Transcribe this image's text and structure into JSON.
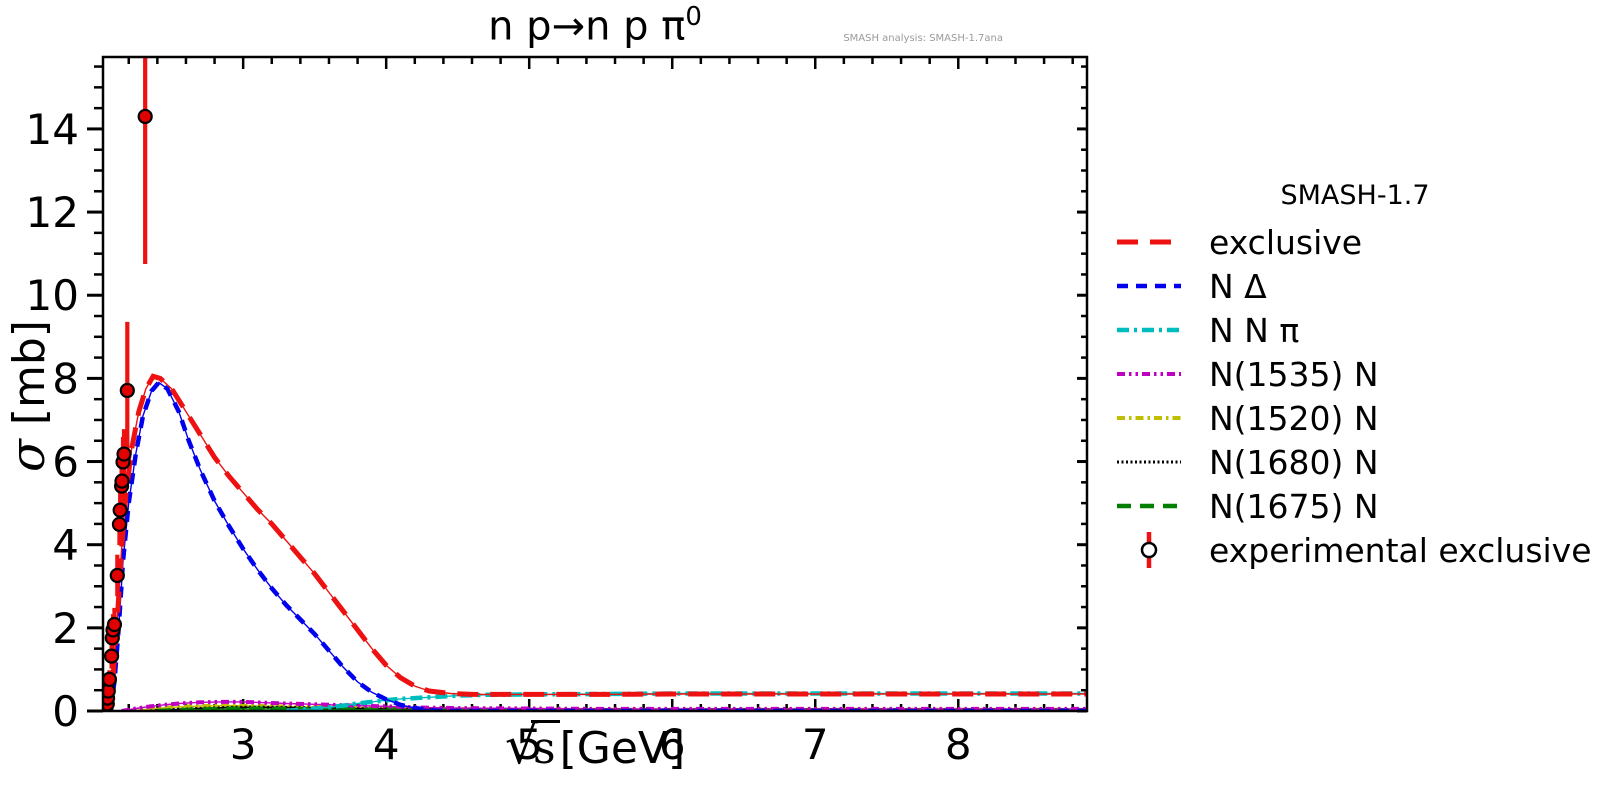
{
  "header": {
    "title_main": "n p→n p π",
    "title_sup": "0",
    "watermark": "SMASH analysis: SMASH-1.7ana"
  },
  "axes": {
    "x_sqrt": "√",
    "x_s": "s",
    "x_unit": "[GeV]",
    "y_sigma": "σ",
    "y_unit": " [mb]"
  },
  "legend": {
    "title": "SMASH-1.7",
    "entries": [
      {
        "label": "exclusive",
        "type": "line",
        "color": "#ee1111",
        "dash": "21 12",
        "width": 5
      },
      {
        "label": "N Δ",
        "type": "line",
        "color": "#0000ee",
        "dash": "11 8",
        "width": 4.5
      },
      {
        "label": "N N π",
        "type": "line",
        "color": "#00bdbd",
        "dash": "12 5 3 5",
        "width": 4.5
      },
      {
        "label": "N(1535) N",
        "type": "line",
        "color": "#bf00bf",
        "dash": "8 4 2.5 4 2.5 4",
        "width": 4
      },
      {
        "label": "N(1520) N",
        "type": "line",
        "color": "#bfbf00",
        "dash": "8 4 2.5 4",
        "width": 4
      },
      {
        "label": "N(1680) N",
        "type": "line",
        "color": "#000000",
        "dash": "2 2.5",
        "width": 3
      },
      {
        "label": "N(1675) N",
        "type": "line",
        "color": "#007f00",
        "dash": "14 9",
        "width": 4.5
      },
      {
        "label": "experimental exclusive",
        "type": "marker",
        "marker_edge": "#000000",
        "marker_face": "#ffffff",
        "errorbar_color": "#ee1111"
      }
    ]
  },
  "chart_data": {
    "type": "line",
    "title": "n p → n p π⁰",
    "xlabel": "√s [GeV]",
    "ylabel": "σ [mb]",
    "xlim": [
      2.02,
      8.9
    ],
    "ylim": [
      0,
      15.73
    ],
    "xticks": [
      3,
      4,
      5,
      6,
      7,
      8
    ],
    "yticks": [
      0,
      2,
      4,
      6,
      8,
      10,
      12,
      14
    ],
    "x_minor_step": 0.2,
    "y_minor_step": 0.5,
    "grid": false,
    "legend_position": "right-outside",
    "series": [
      {
        "name": "N(1520) N",
        "color": "#bfbf00",
        "dash": "8 4 2.5 4",
        "width": 4,
        "points": [
          [
            2.2,
            0.0
          ],
          [
            2.35,
            0.05
          ],
          [
            2.5,
            0.09
          ],
          [
            2.7,
            0.12
          ],
          [
            2.9,
            0.13
          ],
          [
            3.1,
            0.12
          ],
          [
            3.3,
            0.11
          ],
          [
            3.6,
            0.09
          ],
          [
            3.9,
            0.07
          ],
          [
            4.2,
            0.05
          ],
          [
            4.5,
            0.04
          ],
          [
            5.0,
            0.03
          ],
          [
            6.0,
            0.03
          ],
          [
            7.0,
            0.03
          ],
          [
            8.0,
            0.03
          ],
          [
            8.9,
            0.03
          ]
        ]
      },
      {
        "name": "N(1680) N",
        "color": "#000000",
        "dash": "2 2.5",
        "width": 3,
        "points": [
          [
            2.35,
            0.0
          ],
          [
            2.55,
            0.04
          ],
          [
            2.75,
            0.07
          ],
          [
            2.95,
            0.09
          ],
          [
            3.15,
            0.09
          ],
          [
            3.4,
            0.08
          ],
          [
            3.7,
            0.06
          ],
          [
            4.0,
            0.05
          ],
          [
            4.5,
            0.03
          ],
          [
            5.0,
            0.02
          ],
          [
            6.0,
            0.02
          ],
          [
            7.0,
            0.02
          ],
          [
            8.0,
            0.02
          ],
          [
            8.9,
            0.02
          ]
        ]
      },
      {
        "name": "N(1675) N",
        "color": "#007f00",
        "dash": "14 9",
        "width": 4.5,
        "points": [
          [
            2.4,
            0.0
          ],
          [
            2.65,
            0.03
          ],
          [
            2.9,
            0.05
          ],
          [
            3.2,
            0.05
          ],
          [
            3.5,
            0.04
          ],
          [
            4.0,
            0.03
          ],
          [
            4.5,
            0.02
          ],
          [
            5.0,
            0.02
          ],
          [
            6.0,
            0.02
          ],
          [
            7.0,
            0.02
          ],
          [
            8.0,
            0.02
          ],
          [
            8.9,
            0.02
          ]
        ]
      },
      {
        "name": "N(1535) N",
        "color": "#bf00bf",
        "dash": "8 4 2.5 4 2.5 4",
        "width": 4,
        "points": [
          [
            2.15,
            0.0
          ],
          [
            2.25,
            0.06
          ],
          [
            2.35,
            0.11
          ],
          [
            2.45,
            0.15
          ],
          [
            2.55,
            0.18
          ],
          [
            2.7,
            0.21
          ],
          [
            2.85,
            0.22
          ],
          [
            3.0,
            0.22
          ],
          [
            3.15,
            0.2
          ],
          [
            3.3,
            0.18
          ],
          [
            3.5,
            0.16
          ],
          [
            3.7,
            0.14
          ],
          [
            3.9,
            0.12
          ],
          [
            4.1,
            0.1
          ],
          [
            4.3,
            0.08
          ],
          [
            4.5,
            0.07
          ],
          [
            5.0,
            0.06
          ],
          [
            5.5,
            0.05
          ],
          [
            6.0,
            0.05
          ],
          [
            7.0,
            0.05
          ],
          [
            8.0,
            0.05
          ],
          [
            8.9,
            0.05
          ]
        ]
      },
      {
        "name": "N N π",
        "color": "#00bdbd",
        "dash": "12 5 3 5",
        "width": 4.5,
        "points": [
          [
            3.3,
            0.0
          ],
          [
            3.45,
            0.04
          ],
          [
            3.6,
            0.09
          ],
          [
            3.7,
            0.13
          ],
          [
            3.8,
            0.18
          ],
          [
            3.9,
            0.22
          ],
          [
            4.0,
            0.26
          ],
          [
            4.1,
            0.29
          ],
          [
            4.2,
            0.31
          ],
          [
            4.35,
            0.34
          ],
          [
            4.5,
            0.37
          ],
          [
            4.7,
            0.39
          ],
          [
            5.0,
            0.4
          ],
          [
            5.5,
            0.41
          ],
          [
            6.0,
            0.42
          ],
          [
            6.5,
            0.42
          ],
          [
            7.0,
            0.42
          ],
          [
            7.5,
            0.42
          ],
          [
            8.0,
            0.42
          ],
          [
            8.5,
            0.42
          ],
          [
            8.9,
            0.42
          ]
        ]
      },
      {
        "name": "N Δ",
        "color": "#0000ee",
        "dash": "11 8",
        "width": 4.5,
        "points": [
          [
            2.07,
            0.0
          ],
          [
            2.1,
            0.7
          ],
          [
            2.13,
            2.0
          ],
          [
            2.16,
            3.6
          ],
          [
            2.2,
            5.0
          ],
          [
            2.25,
            6.2
          ],
          [
            2.3,
            7.1
          ],
          [
            2.36,
            7.7
          ],
          [
            2.41,
            7.9
          ],
          [
            2.47,
            7.75
          ],
          [
            2.55,
            7.2
          ],
          [
            2.62,
            6.5
          ],
          [
            2.7,
            5.8
          ],
          [
            2.8,
            5.05
          ],
          [
            2.9,
            4.45
          ],
          [
            3.0,
            3.9
          ],
          [
            3.1,
            3.4
          ],
          [
            3.2,
            2.95
          ],
          [
            3.3,
            2.55
          ],
          [
            3.4,
            2.2
          ],
          [
            3.5,
            1.85
          ],
          [
            3.6,
            1.45
          ],
          [
            3.7,
            1.05
          ],
          [
            3.8,
            0.7
          ],
          [
            3.9,
            0.45
          ],
          [
            4.0,
            0.28
          ],
          [
            4.1,
            0.15
          ],
          [
            4.2,
            0.07
          ],
          [
            4.35,
            0.01
          ],
          [
            4.5,
            0.0
          ],
          [
            8.9,
            0.0
          ]
        ]
      },
      {
        "name": "exclusive",
        "color": "#ee1111",
        "dash": "21 12",
        "width": 5,
        "points": [
          [
            2.06,
            0.0
          ],
          [
            2.09,
            0.8
          ],
          [
            2.12,
            2.2
          ],
          [
            2.15,
            3.9
          ],
          [
            2.18,
            5.2
          ],
          [
            2.22,
            6.3
          ],
          [
            2.27,
            7.2
          ],
          [
            2.32,
            7.75
          ],
          [
            2.37,
            8.05
          ],
          [
            2.42,
            8.0
          ],
          [
            2.5,
            7.75
          ],
          [
            2.6,
            7.2
          ],
          [
            2.7,
            6.65
          ],
          [
            2.8,
            6.1
          ],
          [
            2.9,
            5.65
          ],
          [
            3.0,
            5.25
          ],
          [
            3.1,
            4.85
          ],
          [
            3.2,
            4.5
          ],
          [
            3.3,
            4.1
          ],
          [
            3.4,
            3.7
          ],
          [
            3.5,
            3.3
          ],
          [
            3.6,
            2.85
          ],
          [
            3.7,
            2.4
          ],
          [
            3.8,
            1.95
          ],
          [
            3.9,
            1.5
          ],
          [
            4.0,
            1.1
          ],
          [
            4.1,
            0.8
          ],
          [
            4.2,
            0.6
          ],
          [
            4.3,
            0.48
          ],
          [
            4.45,
            0.42
          ],
          [
            4.6,
            0.4
          ],
          [
            4.8,
            0.4
          ],
          [
            5.0,
            0.4
          ],
          [
            5.5,
            0.4
          ],
          [
            6.0,
            0.41
          ],
          [
            6.5,
            0.41
          ],
          [
            7.0,
            0.41
          ],
          [
            7.5,
            0.41
          ],
          [
            8.0,
            0.41
          ],
          [
            8.5,
            0.41
          ],
          [
            8.9,
            0.41
          ]
        ]
      }
    ],
    "experimental": {
      "name": "experimental exclusive",
      "marker": "circle",
      "marker_face": "#e00000",
      "marker_edge": "#000000",
      "errorbar_color": "#ee1111",
      "points": [
        {
          "x": 2.04,
          "y": 0.05,
          "err_lo": 0.05,
          "err_hi": 0.05
        },
        {
          "x": 2.05,
          "y": 0.17,
          "err_lo": 0.08,
          "err_hi": 0.08
        },
        {
          "x": 2.052,
          "y": 0.31,
          "err_lo": 0.12,
          "err_hi": 0.12
        },
        {
          "x": 2.057,
          "y": 0.48,
          "err_lo": 0.15,
          "err_hi": 0.15
        },
        {
          "x": 2.065,
          "y": 0.76,
          "err_lo": 0.22,
          "err_hi": 0.22
        },
        {
          "x": 2.08,
          "y": 1.32,
          "err_lo": 0.3,
          "err_hi": 0.3
        },
        {
          "x": 2.085,
          "y": 1.76,
          "err_lo": 0.35,
          "err_hi": 0.35
        },
        {
          "x": 2.09,
          "y": 1.95,
          "err_lo": 0.38,
          "err_hi": 0.38
        },
        {
          "x": 2.1,
          "y": 2.08,
          "err_lo": 0.4,
          "err_hi": 0.4
        },
        {
          "x": 2.12,
          "y": 3.26,
          "err_lo": 0.5,
          "err_hi": 0.5
        },
        {
          "x": 2.135,
          "y": 4.49,
          "err_lo": 0.5,
          "err_hi": 0.5
        },
        {
          "x": 2.14,
          "y": 4.83,
          "err_lo": 0.55,
          "err_hi": 0.55
        },
        {
          "x": 2.15,
          "y": 5.41,
          "err_lo": 0.6,
          "err_hi": 0.6
        },
        {
          "x": 2.153,
          "y": 5.53,
          "err_lo": 0.6,
          "err_hi": 0.6
        },
        {
          "x": 2.16,
          "y": 5.99,
          "err_lo": 0.6,
          "err_hi": 0.6
        },
        {
          "x": 2.167,
          "y": 6.18,
          "err_lo": 0.6,
          "err_hi": 0.6
        },
        {
          "x": 2.19,
          "y": 7.71,
          "err_lo": 1.5,
          "err_hi": 1.65
        },
        {
          "x": 2.315,
          "y": 14.3,
          "err_lo": 3.55,
          "err_hi": 3.5
        }
      ]
    }
  }
}
